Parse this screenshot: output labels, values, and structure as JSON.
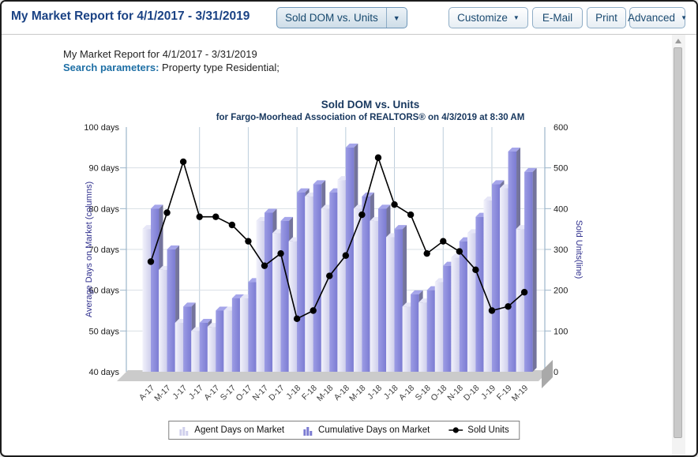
{
  "icons": {
    "caret_down": "▼"
  },
  "header": {
    "title": "My Market Report for 4/1/2017 - 3/31/2019",
    "report_type_dropdown": {
      "value": "Sold DOM vs. Units"
    },
    "buttons": [
      {
        "label": "Customize",
        "caret": true
      },
      {
        "label": "E-Mail",
        "caret": false
      },
      {
        "label": "Print",
        "caret": false
      },
      {
        "label": "Advanced",
        "caret": true
      }
    ]
  },
  "report_header": {
    "title_line": "My Market Report for 4/1/2017 - 3/31/2019",
    "search_parameters_label": "Search parameters:",
    "search_parameters_value": " Property type Residential;"
  },
  "chart_data": {
    "type": "bar+line",
    "title": "Sold DOM vs. Units",
    "subtitle": "for Fargo-Moorhead Association of REALTORS® on 4/3/2019 at 8:30 AM",
    "categories": [
      "A-17",
      "M-17",
      "J-17",
      "J-17",
      "A-17",
      "S-17",
      "O-17",
      "N-17",
      "D-17",
      "J-18",
      "F-18",
      "M-18",
      "A-18",
      "M-18",
      "J-18",
      "J-18",
      "A-18",
      "S-18",
      "O-18",
      "N-18",
      "D-18",
      "J-19",
      "F-19",
      "M-19"
    ],
    "series": [
      {
        "name": "Agent Days on Market",
        "type": "bar",
        "axis": "left",
        "color": "#cfcfec",
        "highlight": "#f2f2fb",
        "top": "#e6e6f7",
        "side": "#a3a3b8",
        "values": [
          75,
          65,
          52,
          50,
          51,
          55,
          58,
          77,
          74,
          72,
          83,
          80,
          87,
          80,
          77,
          73,
          56,
          57,
          62,
          68,
          74,
          82,
          85,
          75
        ]
      },
      {
        "name": "Cumulative Days on Market",
        "type": "bar",
        "axis": "left",
        "color": "#7b7bd2",
        "highlight": "#9c9ce5",
        "top": "#a5a5ea",
        "side": "#74749c",
        "values": [
          80,
          70,
          56,
          52,
          55,
          58,
          62,
          79,
          77,
          84,
          86,
          84,
          95,
          83,
          80,
          75,
          59,
          60,
          66,
          72,
          78,
          86,
          94,
          89
        ]
      },
      {
        "name": "Sold Units",
        "type": "line",
        "axis": "right",
        "color": "#000000",
        "values": [
          270,
          390,
          515,
          380,
          380,
          360,
          320,
          260,
          290,
          130,
          150,
          235,
          285,
          385,
          525,
          410,
          385,
          290,
          320,
          295,
          250,
          150,
          160,
          195
        ]
      }
    ],
    "left_axis": {
      "title": "Average Days on Market (columns)",
      "min": 40,
      "max": 100,
      "tick_step": 10,
      "tick_suffix": " days",
      "title_color": "#30308e"
    },
    "right_axis": {
      "title": "Sold Units(line)",
      "min": 0,
      "max": 600,
      "tick_step": 100,
      "title_color": "#30308e"
    },
    "grid": {
      "horizontal": true,
      "vertical_every": 3
    },
    "legend_position": "bottom"
  }
}
